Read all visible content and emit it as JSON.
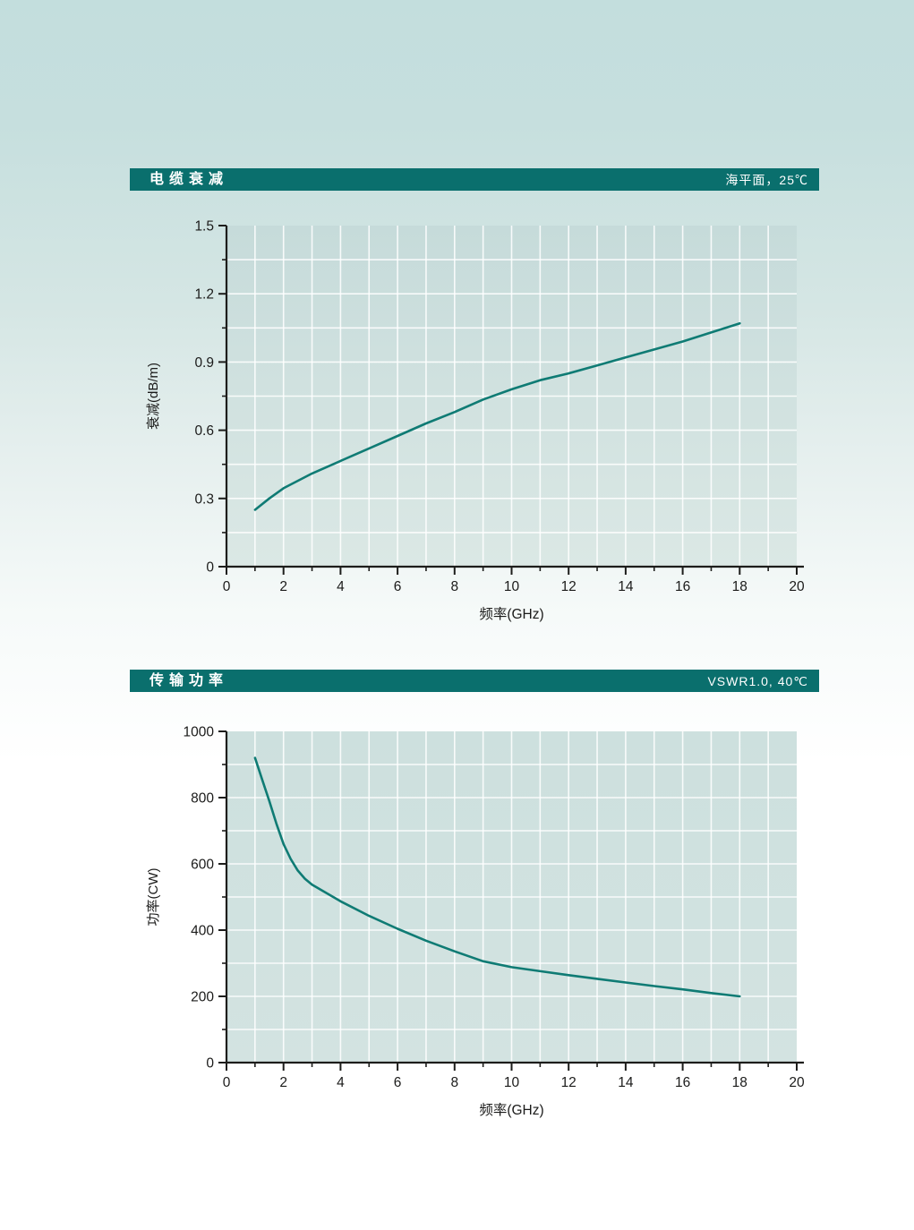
{
  "page": {
    "background_top_color": "#c3dedd",
    "header_bar_color": "#0a6f6d",
    "header_text_color": "#ffffff"
  },
  "chart_data": [
    {
      "type": "line",
      "title": "电缆衰减",
      "condition": "海平面，25℃",
      "xlabel": "频率(GHz)",
      "ylabel": "衰减(dB/m)",
      "xlim": [
        0,
        20
      ],
      "ylim": [
        0,
        1.5
      ],
      "x_tick_step": 2,
      "x_minor_step": 1,
      "y_tick_step": 0.3,
      "y_minor_step": 0.15,
      "grid": "minor-white",
      "legend": "none",
      "line_color": "#0f7b74",
      "series": [
        {
          "name": "衰减",
          "x": [
            1,
            1.5,
            2,
            3,
            4,
            5,
            6,
            7,
            8,
            9,
            10,
            11,
            12,
            13,
            14,
            15,
            16,
            17,
            18
          ],
          "y": [
            0.25,
            0.3,
            0.345,
            0.41,
            0.465,
            0.52,
            0.575,
            0.63,
            0.68,
            0.735,
            0.78,
            0.82,
            0.85,
            0.885,
            0.92,
            0.955,
            0.99,
            1.03,
            1.07
          ]
        }
      ]
    },
    {
      "type": "line",
      "title": "传输功率",
      "condition": "VSWR1.0, 40℃",
      "xlabel": "频率(GHz)",
      "ylabel": "功率(CW)",
      "xlim": [
        0,
        20
      ],
      "ylim": [
        0,
        1000
      ],
      "x_tick_step": 2,
      "x_minor_step": 1,
      "y_tick_step": 200,
      "y_minor_step": 100,
      "grid": "minor-white",
      "legend": "none",
      "line_color": "#0f7b74",
      "series": [
        {
          "name": "功率",
          "x": [
            1,
            1.25,
            1.5,
            1.75,
            2,
            2.25,
            2.5,
            2.75,
            3,
            4,
            5,
            6,
            7,
            8,
            9,
            10,
            11,
            12,
            13,
            14,
            15,
            16,
            17,
            18
          ],
          "y": [
            920,
            855,
            790,
            722,
            660,
            615,
            580,
            555,
            537,
            487,
            443,
            404,
            368,
            336,
            306,
            288,
            276,
            264,
            253,
            242,
            231,
            221,
            210,
            200
          ]
        }
      ]
    }
  ]
}
